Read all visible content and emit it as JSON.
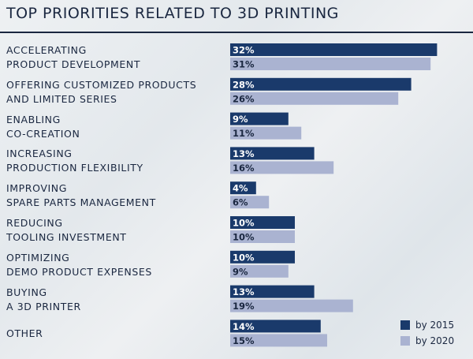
{
  "chart_data": {
    "type": "bar",
    "orientation": "horizontal",
    "title": "TOP PRIORITIES RELATED TO 3D PRINTING",
    "categories": [
      "ACCELERATING\nPRODUCT DEVELOPMENT",
      "OFFERING CUSTOMIZED PRODUCTS\nAND LIMITED SERIES",
      "ENABLING\nCO-CREATION",
      "INCREASING\nPRODUCTION FLEXIBILITY",
      "IMPROVING\nSPARE PARTS MANAGEMENT",
      "REDUCING\nTOOLING INVESTMENT",
      "OPTIMIZING\nDEMO PRODUCT EXPENSES",
      "BUYING\nA 3D PRINTER",
      "OTHER"
    ],
    "series": [
      {
        "name": "by 2015",
        "color": "#1a3a6b",
        "label_color": "#ffffff",
        "values": [
          32,
          28,
          9,
          13,
          4,
          10,
          10,
          13,
          14
        ],
        "labels": [
          "32%",
          "28%",
          "9%",
          "13%",
          "4%",
          "10%",
          "10%",
          "13%",
          "14%"
        ]
      },
      {
        "name": "by 2020",
        "color": "#aab3d1",
        "label_color": "#1a2740",
        "values": [
          31,
          26,
          11,
          16,
          6,
          10,
          9,
          19,
          15
        ],
        "labels": [
          "31%",
          "26%",
          "11%",
          "16%",
          "6%",
          "10%",
          "9%",
          "19%",
          "15%"
        ]
      }
    ],
    "legend_position": "bottom-right",
    "grid": false
  }
}
